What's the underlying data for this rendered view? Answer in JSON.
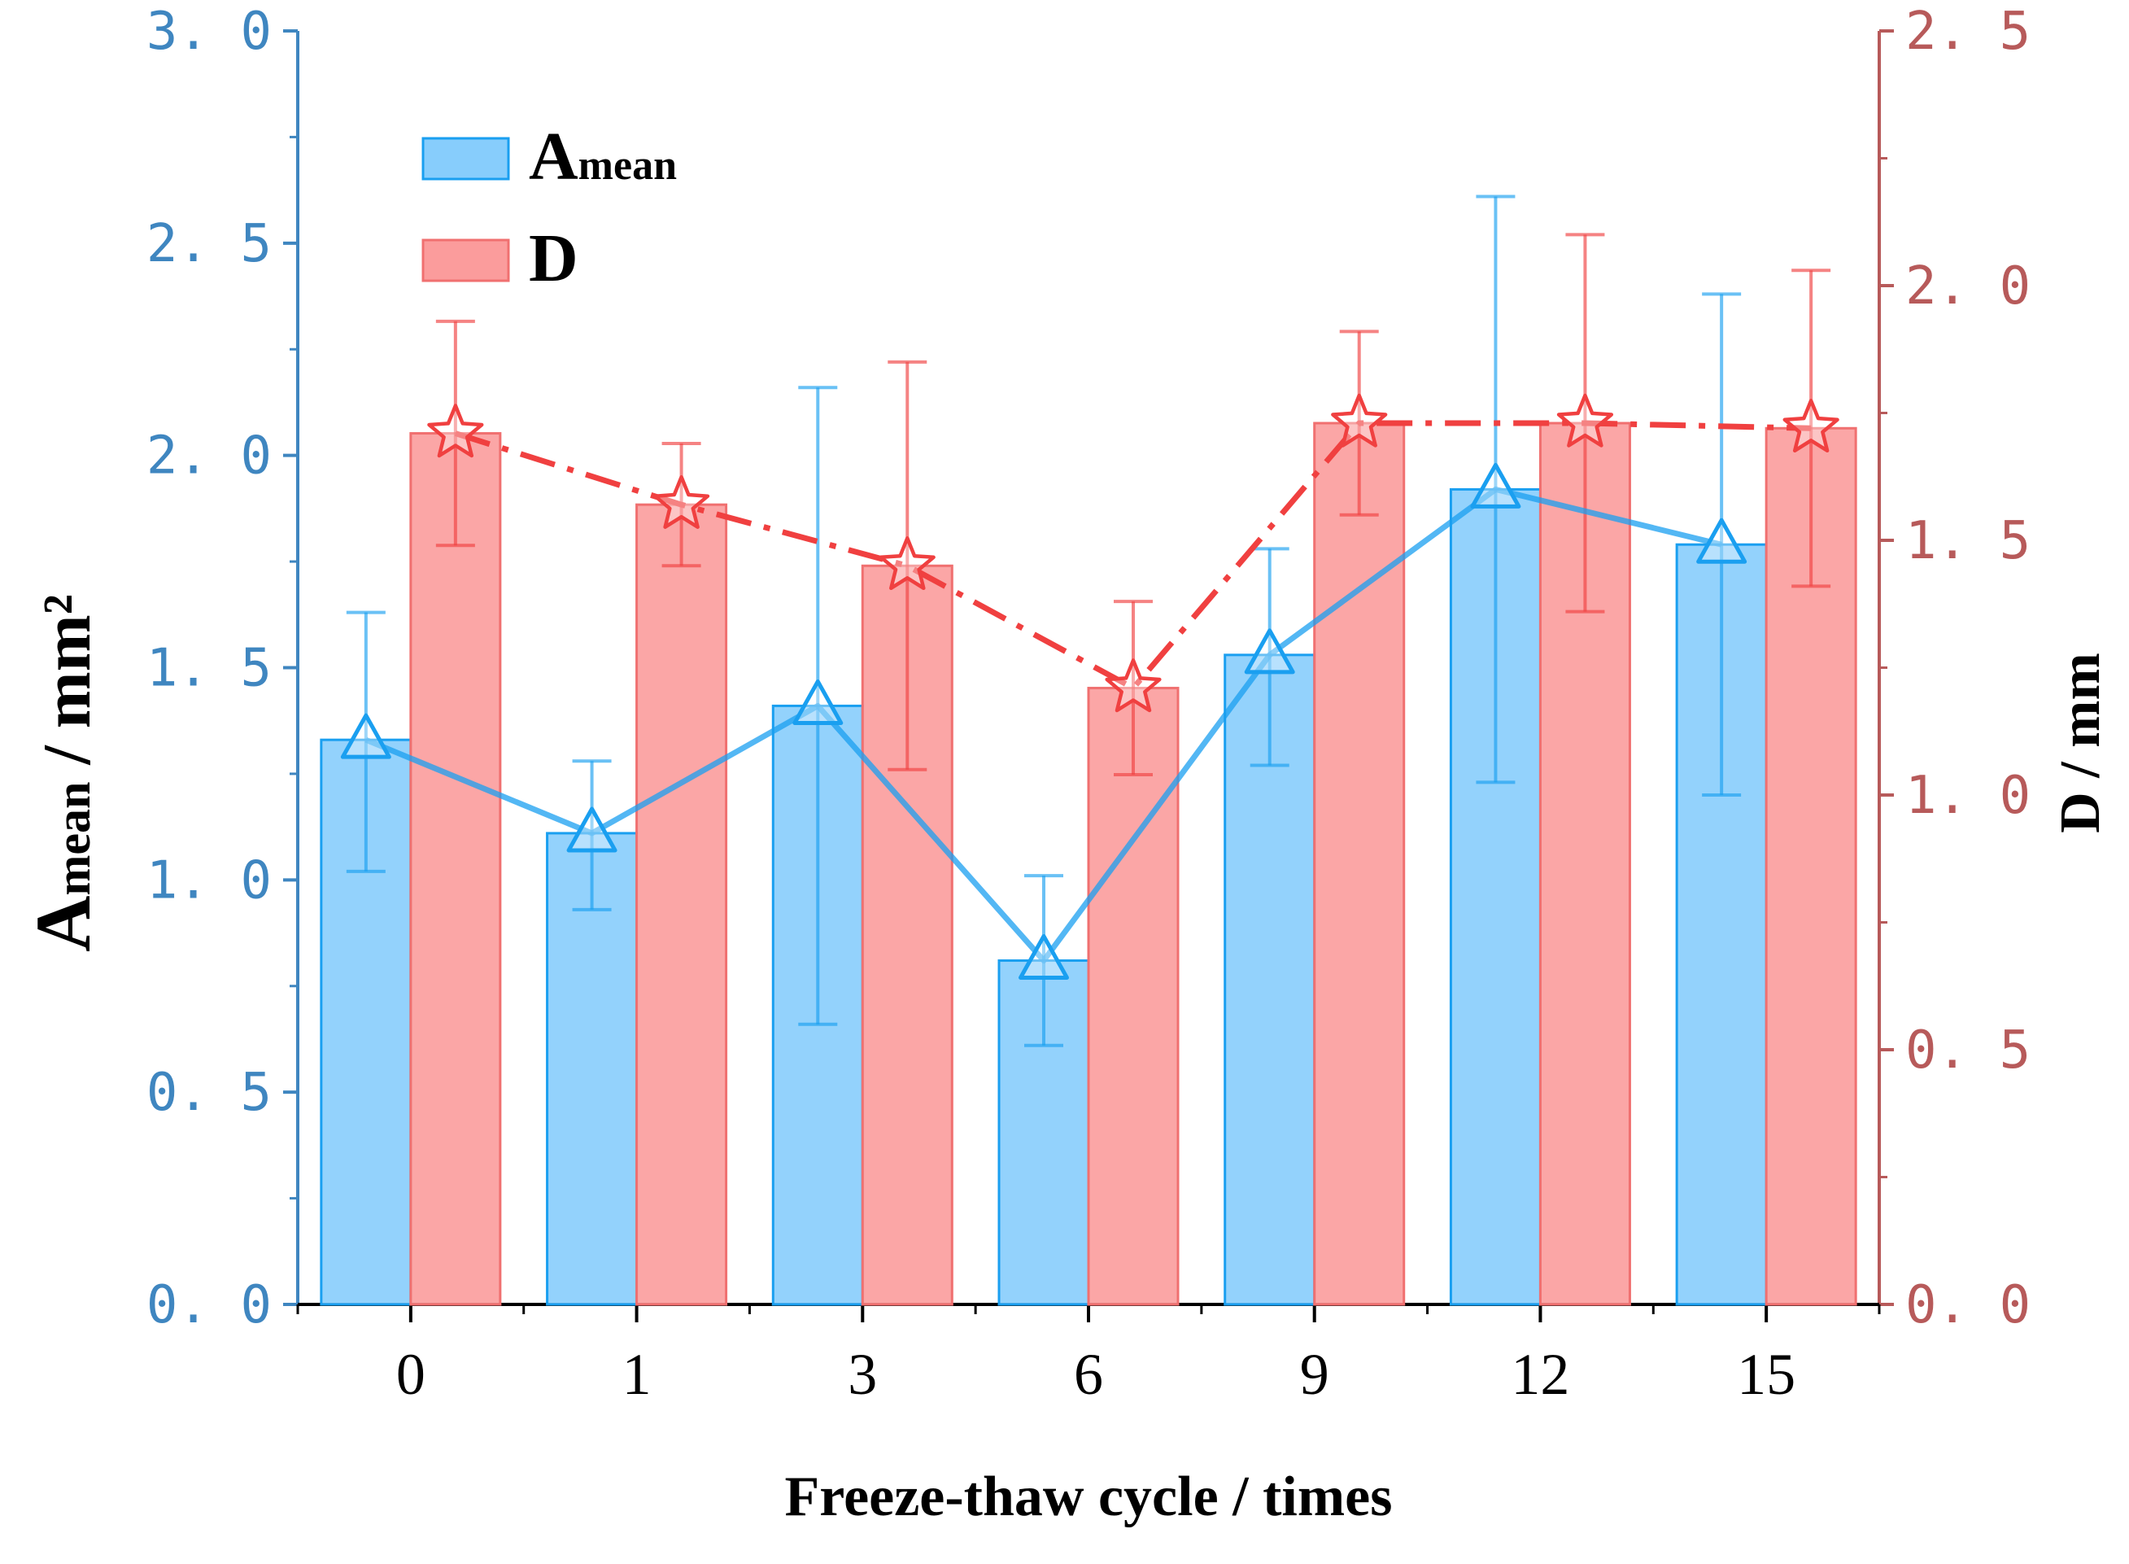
{
  "chart_data": {
    "type": "bar",
    "xlabel": "Freeze-thaw cycle / times",
    "ylabel_left": {
      "main": "A",
      "sub": "mean",
      "unit": " / mm²"
    },
    "ylabel_right": "D / mm",
    "categories": [
      "0",
      "1",
      "3",
      "6",
      "9",
      "12",
      "15"
    ],
    "ylim_left": [
      0,
      3.0
    ],
    "ylim_right": [
      0,
      2.5
    ],
    "yticks_left": [
      "0. 0",
      "0. 5",
      "1. 0",
      "1. 5",
      "2. 0",
      "2. 5",
      "3. 0"
    ],
    "yticks_right": [
      "0. 0",
      "0. 5",
      "1. 0",
      "1. 5",
      "2. 0",
      "2. 5"
    ],
    "legend_position": "top-left",
    "series": [
      {
        "name": "Amean",
        "legend_main": "A",
        "legend_sub": "mean",
        "axis": "left",
        "color": "#1a9ff0",
        "fill": "#87cdfc",
        "values": [
          1.33,
          1.11,
          1.41,
          0.81,
          1.53,
          1.92,
          1.79
        ],
        "err_low": [
          1.02,
          0.93,
          0.66,
          0.61,
          1.27,
          1.23,
          1.2
        ],
        "err_high": [
          1.63,
          1.28,
          2.16,
          1.01,
          1.78,
          2.61,
          2.38
        ],
        "marker": "triangle",
        "line_style": "solid"
      },
      {
        "name": "D",
        "legend_main": "D",
        "legend_sub": "",
        "axis": "right",
        "color": "#f04040",
        "fill": "#fb9c9c",
        "values": [
          1.71,
          1.57,
          1.45,
          1.21,
          1.73,
          1.73,
          1.72
        ],
        "err_low": [
          1.49,
          1.45,
          1.05,
          1.04,
          1.55,
          1.36,
          1.41
        ],
        "err_high": [
          1.93,
          1.69,
          1.85,
          1.38,
          1.91,
          2.1,
          2.03
        ],
        "marker": "star",
        "line_style": "dash-dot"
      }
    ]
  }
}
